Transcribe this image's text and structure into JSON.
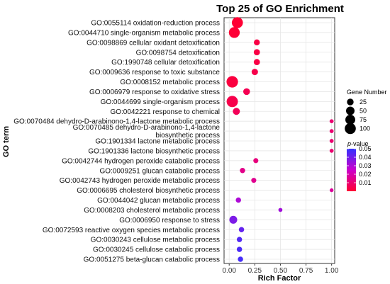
{
  "chart_data": {
    "type": "scatter",
    "title": "Top 25 of GO Enrichment",
    "xlabel": "Rich Factor",
    "ylabel": "GO term",
    "xlim": [
      -0.05,
      1.03
    ],
    "xticks": [
      "0.00",
      "0.25",
      "0.50",
      "0.75",
      "1.00"
    ],
    "xtick_values": [
      0.0,
      0.25,
      0.5,
      0.75,
      1.0
    ],
    "grid": true,
    "legend_position": "right",
    "size_legend": {
      "title": "Gene Number",
      "entries": [
        {
          "label": "25",
          "value": 25
        },
        {
          "label": "50",
          "value": 50
        },
        {
          "label": "75",
          "value": 75
        },
        {
          "label": "100",
          "value": 100
        }
      ]
    },
    "color_legend": {
      "title_italic": "p",
      "title_rest": "-value",
      "ticks": [
        {
          "label": "0.05",
          "value": 0.05
        },
        {
          "label": "0.04",
          "value": 0.04
        },
        {
          "label": "0.03",
          "value": 0.03
        },
        {
          "label": "0.02",
          "value": 0.02
        },
        {
          "label": "0.01",
          "value": 0.01
        }
      ],
      "colors": {
        "low": "#ff0033",
        "mid": "#cc00cc",
        "high": "#3333ff"
      }
    },
    "terms": [
      {
        "lines": [
          "GO:0055114 oxidation-reduction process"
        ],
        "x": 0.08,
        "gene_number": 100,
        "p_value": 0.0001
      },
      {
        "lines": [
          "GO:0044710 single-organism metabolic process"
        ],
        "x": 0.05,
        "gene_number": 95,
        "p_value": 0.0005
      },
      {
        "lines": [
          "GO:0098869 cellular oxidant detoxification"
        ],
        "x": 0.27,
        "gene_number": 18,
        "p_value": 0.003
      },
      {
        "lines": [
          "GO:0098754 detoxification"
        ],
        "x": 0.27,
        "gene_number": 20,
        "p_value": 0.003
      },
      {
        "lines": [
          "GO:1990748 cellular detoxification"
        ],
        "x": 0.27,
        "gene_number": 20,
        "p_value": 0.003
      },
      {
        "lines": [
          "GO:0009636 response to toxic substance"
        ],
        "x": 0.25,
        "gene_number": 22,
        "p_value": 0.004
      },
      {
        "lines": [
          "GO:0008152 metabolic process"
        ],
        "x": 0.03,
        "gene_number": 110,
        "p_value": 0.002
      },
      {
        "lines": [
          "GO:0006979 response to oxidative stress"
        ],
        "x": 0.17,
        "gene_number": 26,
        "p_value": 0.005
      },
      {
        "lines": [
          "GO:0044699 single-organism process"
        ],
        "x": 0.03,
        "gene_number": 105,
        "p_value": 0.004
      },
      {
        "lines": [
          "GO:0042221 response to chemical"
        ],
        "x": 0.07,
        "gene_number": 30,
        "p_value": 0.006
      },
      {
        "lines": [
          "GO:0070484 dehydro-D-arabinono-1,4-lactone metabolic process"
        ],
        "x": 1.0,
        "gene_number": 4,
        "p_value": 0.01
      },
      {
        "lines": [
          "GO:0070485 dehydro-D-arabinono-1,4-lactone",
          "biosynthetic process"
        ],
        "x": 1.0,
        "gene_number": 4,
        "p_value": 0.01
      },
      {
        "lines": [
          "GO:1901334 lactone metabolic process"
        ],
        "x": 1.0,
        "gene_number": 4,
        "p_value": 0.01
      },
      {
        "lines": [
          "GO:1901336 lactone biosynthetic process"
        ],
        "x": 1.0,
        "gene_number": 4,
        "p_value": 0.01
      },
      {
        "lines": [
          "GO:0042744 hydrogen peroxide catabolic process"
        ],
        "x": 0.26,
        "gene_number": 10,
        "p_value": 0.012
      },
      {
        "lines": [
          "GO:0009251 glucan catabolic process"
        ],
        "x": 0.13,
        "gene_number": 12,
        "p_value": 0.014
      },
      {
        "lines": [
          "GO:0042743 hydrogen peroxide metabolic process"
        ],
        "x": 0.24,
        "gene_number": 10,
        "p_value": 0.015
      },
      {
        "lines": [
          "GO:0006695 cholesterol biosynthetic process"
        ],
        "x": 1.0,
        "gene_number": 3,
        "p_value": 0.017
      },
      {
        "lines": [
          "GO:0044042 glucan metabolic process"
        ],
        "x": 0.09,
        "gene_number": 12,
        "p_value": 0.03
      },
      {
        "lines": [
          "GO:0008203 cholesterol metabolic process"
        ],
        "x": 0.5,
        "gene_number": 4,
        "p_value": 0.032
      },
      {
        "lines": [
          "GO:0006950 response to stress"
        ],
        "x": 0.04,
        "gene_number": 40,
        "p_value": 0.038
      },
      {
        "lines": [
          "GO:0072593 reactive oxygen species metabolic process"
        ],
        "x": 0.12,
        "gene_number": 12,
        "p_value": 0.042
      },
      {
        "lines": [
          "GO:0030243 cellulose metabolic process"
        ],
        "x": 0.1,
        "gene_number": 12,
        "p_value": 0.045
      },
      {
        "lines": [
          "GO:0030245 cellulose catabolic process"
        ],
        "x": 0.1,
        "gene_number": 12,
        "p_value": 0.046
      },
      {
        "lines": [
          "GO:0051275 beta-glucan catabolic process"
        ],
        "x": 0.11,
        "gene_number": 12,
        "p_value": 0.047
      }
    ]
  }
}
